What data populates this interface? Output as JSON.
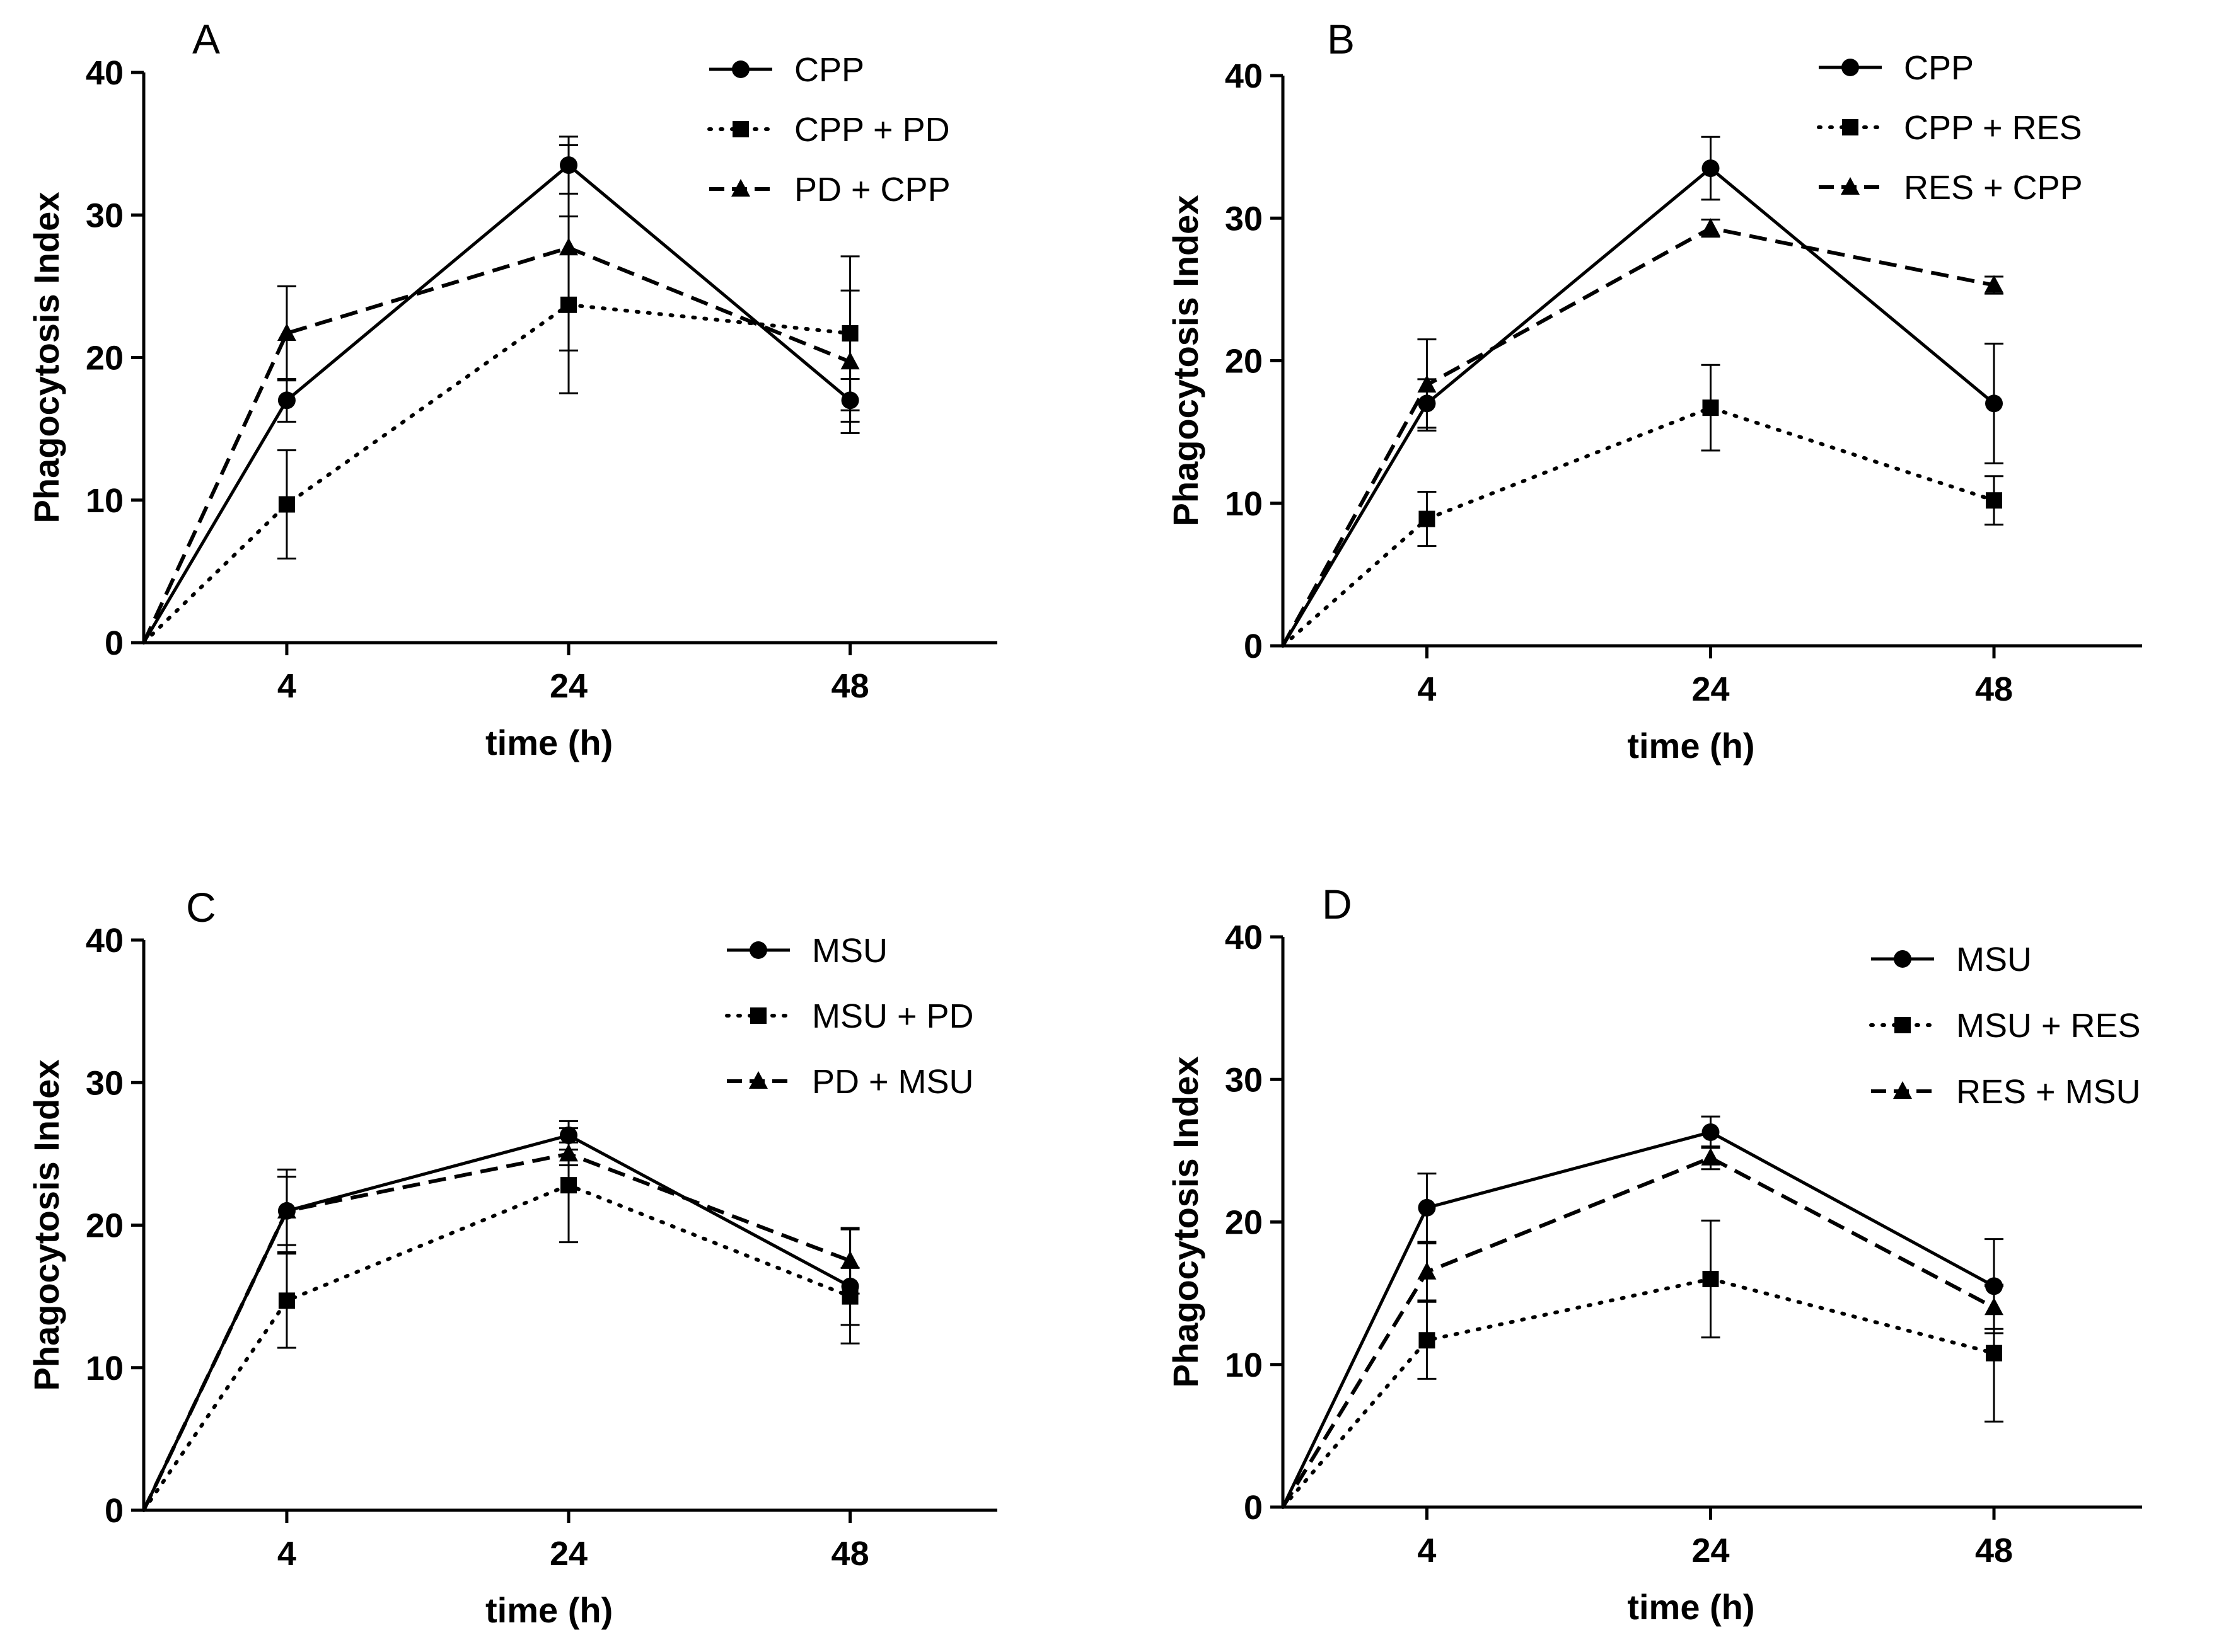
{
  "chart_data": [
    {
      "type": "line",
      "panel": "A",
      "xlabel": "time (h)",
      "ylabel": "Phagocytosis Index",
      "x_ticks": [
        4,
        24,
        48
      ],
      "ylim": [
        0,
        40
      ],
      "y_ticks": [
        0,
        10,
        20,
        30,
        40
      ],
      "legend_position": "top-right",
      "series": [
        {
          "name": "CPP",
          "marker": "circle",
          "line": "solid",
          "points": [
            {
              "x": 0,
              "y": 0
            },
            {
              "x": 4,
              "y": 17,
              "err": 1.5
            },
            {
              "x": 24,
              "y": 33.5,
              "err": 2
            },
            {
              "x": 48,
              "y": 17,
              "err": 1.5
            }
          ]
        },
        {
          "name": "CPP + PD",
          "marker": "square",
          "line": "dotted",
          "points": [
            {
              "x": 0,
              "y": 0
            },
            {
              "x": 4,
              "y": 9.7,
              "err": 3.8
            },
            {
              "x": 24,
              "y": 23.7,
              "err": 6.2
            },
            {
              "x": 48,
              "y": 21.7,
              "err": 5.4
            }
          ]
        },
        {
          "name": "PD + CPP",
          "marker": "triangle",
          "line": "dashed",
          "points": [
            {
              "x": 0,
              "y": 0
            },
            {
              "x": 4,
              "y": 21.7,
              "err": 3.3
            },
            {
              "x": 24,
              "y": 27.7,
              "err": 7.2
            },
            {
              "x": 48,
              "y": 19.7,
              "err": 5
            }
          ]
        }
      ]
    },
    {
      "type": "line",
      "panel": "B",
      "xlabel": "time (h)",
      "ylabel": "Phagocytosis Index",
      "x_ticks": [
        4,
        24,
        48
      ],
      "ylim": [
        0,
        40
      ],
      "y_ticks": [
        0,
        10,
        20,
        30,
        40
      ],
      "legend_position": "top-right",
      "series": [
        {
          "name": "CPP",
          "marker": "circle",
          "line": "solid",
          "points": [
            {
              "x": 0,
              "y": 0
            },
            {
              "x": 4,
              "y": 17,
              "err": 1.7
            },
            {
              "x": 24,
              "y": 33.5,
              "err": 2.2
            },
            {
              "x": 48,
              "y": 17,
              "err": 4.2
            }
          ]
        },
        {
          "name": "CPP + RES",
          "marker": "square",
          "line": "dotted",
          "points": [
            {
              "x": 0,
              "y": 0
            },
            {
              "x": 4,
              "y": 8.9,
              "err": 1.9
            },
            {
              "x": 24,
              "y": 16.7,
              "err": 3
            },
            {
              "x": 48,
              "y": 10.2,
              "err": 1.7
            }
          ]
        },
        {
          "name": "RES + CPP",
          "marker": "triangle",
          "line": "dashed",
          "points": [
            {
              "x": 0,
              "y": 0
            },
            {
              "x": 4,
              "y": 18.3,
              "err": 3.2
            },
            {
              "x": 24,
              "y": 29.3,
              "err": 0.6
            },
            {
              "x": 48,
              "y": 25.3,
              "err": 0.6
            }
          ]
        }
      ]
    },
    {
      "type": "line",
      "panel": "C",
      "xlabel": "time (h)",
      "ylabel": "Phagocytosis Index",
      "x_ticks": [
        4,
        24,
        48
      ],
      "ylim": [
        0,
        40
      ],
      "y_ticks": [
        0,
        10,
        20,
        30,
        40
      ],
      "legend_position": "top-right",
      "series": [
        {
          "name": "MSU",
          "marker": "circle",
          "line": "solid",
          "points": [
            {
              "x": 0,
              "y": 0
            },
            {
              "x": 4,
              "y": 21,
              "err": 2.9
            },
            {
              "x": 24,
              "y": 26.3,
              "err": 1
            },
            {
              "x": 48,
              "y": 15.7,
              "err": 4
            }
          ]
        },
        {
          "name": "MSU + PD",
          "marker": "square",
          "line": "dotted",
          "points": [
            {
              "x": 0,
              "y": 0
            },
            {
              "x": 4,
              "y": 14.7,
              "err": 3.3
            },
            {
              "x": 24,
              "y": 22.8,
              "err": 4
            },
            {
              "x": 48,
              "y": 15,
              "err": 2
            }
          ]
        },
        {
          "name": "PD + MSU",
          "marker": "triangle",
          "line": "dashed",
          "points": [
            {
              "x": 0,
              "y": 0
            },
            {
              "x": 4,
              "y": 21,
              "err": 2.4
            },
            {
              "x": 24,
              "y": 25,
              "err": 0.8
            },
            {
              "x": 48,
              "y": 17.5,
              "err": 2.3
            }
          ]
        }
      ]
    },
    {
      "type": "line",
      "panel": "D",
      "xlabel": "time (h)",
      "ylabel": "Phagocytosis Index",
      "x_ticks": [
        4,
        24,
        48
      ],
      "ylim": [
        0,
        40
      ],
      "y_ticks": [
        0,
        10,
        20,
        30,
        40
      ],
      "legend_position": "top-right",
      "series": [
        {
          "name": "MSU",
          "marker": "circle",
          "line": "solid",
          "points": [
            {
              "x": 0,
              "y": 0
            },
            {
              "x": 4,
              "y": 21,
              "err": 2.4
            },
            {
              "x": 24,
              "y": 26.3,
              "err": 1.1
            },
            {
              "x": 48,
              "y": 15.5,
              "err": 3.3
            }
          ]
        },
        {
          "name": "MSU + RES",
          "marker": "square",
          "line": "dotted",
          "points": [
            {
              "x": 0,
              "y": 0
            },
            {
              "x": 4,
              "y": 11.7,
              "err": 2.7
            },
            {
              "x": 24,
              "y": 16,
              "err": 4.1
            },
            {
              "x": 48,
              "y": 10.8,
              "err": 4.8
            }
          ]
        },
        {
          "name": "RES + MSU",
          "marker": "triangle",
          "line": "dashed",
          "points": [
            {
              "x": 0,
              "y": 0
            },
            {
              "x": 4,
              "y": 16.5,
              "err": 2
            },
            {
              "x": 24,
              "y": 24.5,
              "err": 0.8
            },
            {
              "x": 48,
              "y": 14,
              "err": 1.5
            }
          ]
        }
      ]
    }
  ]
}
